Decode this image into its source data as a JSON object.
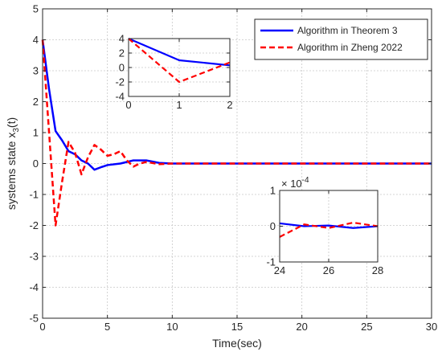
{
  "chart_data": [
    {
      "type": "line",
      "xlabel": "Time(sec)",
      "ylabel_main": "systems state x",
      "ylabel_sub": "3",
      "ylabel_tail": "(t)",
      "xlim": [
        0,
        30
      ],
      "ylim": [
        -5,
        5
      ],
      "xticks": [
        0,
        5,
        10,
        15,
        20,
        25,
        30
      ],
      "yticks": [
        -5,
        -4,
        -3,
        -2,
        -1,
        0,
        1,
        2,
        3,
        4,
        5
      ],
      "grid": true,
      "legend_position": "top-right",
      "series": [
        {
          "name": "Algorithm in Theorem 3",
          "color": "#0000ff",
          "style": "solid",
          "x": [
            0,
            0.5,
            1,
            1.5,
            2,
            2.5,
            3,
            3.5,
            4,
            4.5,
            5,
            6,
            7,
            8,
            9,
            10,
            12,
            15,
            20,
            25,
            30
          ],
          "y": [
            4,
            2.4,
            1.05,
            0.75,
            0.4,
            0.3,
            0.1,
            0.0,
            -0.2,
            -0.12,
            -0.05,
            0.0,
            0.1,
            0.1,
            0.02,
            0,
            0,
            0,
            0,
            0,
            0
          ]
        },
        {
          "name": "Algorithm in Zheng 2022",
          "color": "#ff0000",
          "style": "dashed",
          "x": [
            0,
            0.5,
            1,
            1.5,
            2,
            2.5,
            3,
            3.5,
            4,
            4.5,
            5,
            5.5,
            6,
            6.5,
            7,
            7.5,
            8,
            9,
            10,
            12,
            15,
            20,
            25,
            30
          ],
          "y": [
            4,
            1.0,
            -2.0,
            -0.6,
            0.7,
            0.35,
            -0.35,
            0.2,
            0.6,
            0.45,
            0.25,
            0.3,
            0.4,
            0.1,
            -0.1,
            0.0,
            0.05,
            -0.02,
            0,
            0,
            0,
            0,
            0,
            0
          ]
        }
      ]
    },
    {
      "type": "line",
      "xlim": [
        0,
        2
      ],
      "ylim": [
        -4,
        4
      ],
      "xticks": [
        0,
        1,
        2
      ],
      "yticks": [
        -4,
        -2,
        0,
        2,
        4
      ],
      "grid": true,
      "series": [
        {
          "color": "#0000ff",
          "style": "solid",
          "x": [
            0,
            1,
            2
          ],
          "y": [
            4,
            1.0,
            0.3
          ]
        },
        {
          "color": "#ff0000",
          "style": "dashed",
          "x": [
            0,
            1,
            2
          ],
          "y": [
            4,
            -2.0,
            0.7
          ]
        }
      ]
    },
    {
      "type": "line",
      "xlim": [
        24,
        28
      ],
      "ylim": [
        -1,
        1
      ],
      "xticks": [
        24,
        26,
        28
      ],
      "yticks": [
        -1,
        0,
        1
      ],
      "exponent_base": "× 10",
      "exponent_power": "-4",
      "grid": true,
      "series": [
        {
          "color": "#0000ff",
          "style": "solid",
          "x": [
            24,
            25,
            26,
            27,
            28
          ],
          "y": [
            0.08,
            0.0,
            0.02,
            -0.05,
            0.0
          ]
        },
        {
          "color": "#ff0000",
          "style": "dashed",
          "x": [
            24,
            25,
            26,
            27,
            28
          ],
          "y": [
            -0.3,
            0.05,
            -0.05,
            0.1,
            0.0
          ]
        }
      ]
    }
  ]
}
